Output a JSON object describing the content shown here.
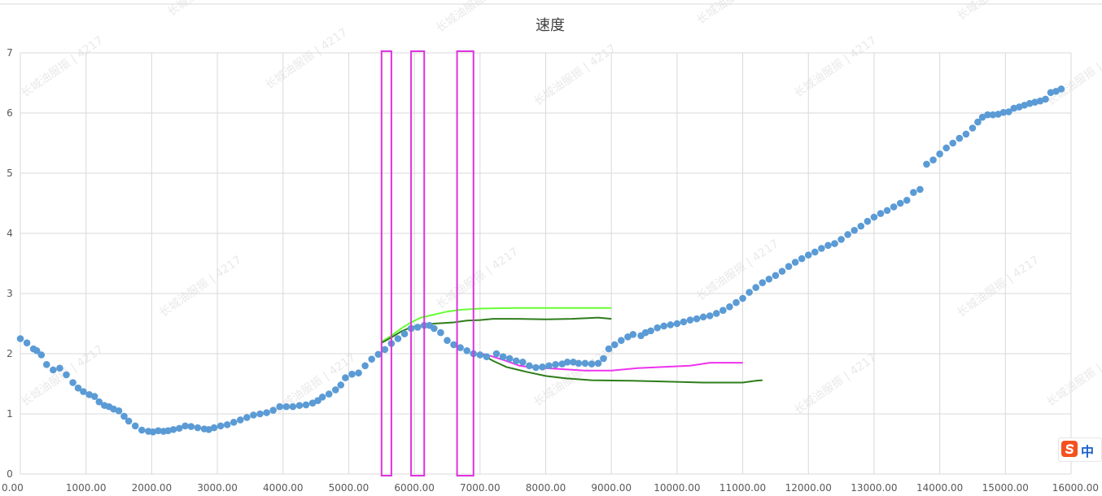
{
  "chart_data": {
    "type": "scatter",
    "title": "速度",
    "xlim": [
      0,
      16000
    ],
    "ylim": [
      0,
      7
    ],
    "x_ticks": [
      "0.00",
      "1000.00",
      "2000.00",
      "3000.00",
      "4000.00",
      "5000.00",
      "6000.00",
      "7000.00",
      "8000.00",
      "9000.00",
      "10000.00",
      "11000.00",
      "12000.00",
      "13000.00",
      "14000.00",
      "15000.00",
      "16000.00"
    ],
    "y_ticks": [
      "0",
      "1",
      "2",
      "3",
      "4",
      "5",
      "6",
      "7"
    ],
    "grid": true,
    "series": [
      {
        "kind": "scatter",
        "color": "#5b9bd5",
        "points": [
          [
            0,
            2.25
          ],
          [
            100,
            2.18
          ],
          [
            200,
            2.08
          ],
          [
            250,
            2.05
          ],
          [
            320,
            1.98
          ],
          [
            400,
            1.82
          ],
          [
            500,
            1.73
          ],
          [
            600,
            1.76
          ],
          [
            700,
            1.65
          ],
          [
            800,
            1.52
          ],
          [
            880,
            1.43
          ],
          [
            960,
            1.37
          ],
          [
            1050,
            1.32
          ],
          [
            1130,
            1.29
          ],
          [
            1200,
            1.2
          ],
          [
            1280,
            1.14
          ],
          [
            1350,
            1.12
          ],
          [
            1420,
            1.08
          ],
          [
            1500,
            1.05
          ],
          [
            1580,
            0.96
          ],
          [
            1650,
            0.88
          ],
          [
            1750,
            0.8
          ],
          [
            1850,
            0.73
          ],
          [
            1950,
            0.71
          ],
          [
            2020,
            0.7
          ],
          [
            2100,
            0.72
          ],
          [
            2180,
            0.71
          ],
          [
            2250,
            0.72
          ],
          [
            2330,
            0.74
          ],
          [
            2420,
            0.76
          ],
          [
            2510,
            0.8
          ],
          [
            2600,
            0.79
          ],
          [
            2700,
            0.77
          ],
          [
            2800,
            0.75
          ],
          [
            2870,
            0.74
          ],
          [
            2950,
            0.77
          ],
          [
            3050,
            0.8
          ],
          [
            3150,
            0.82
          ],
          [
            3250,
            0.86
          ],
          [
            3350,
            0.9
          ],
          [
            3450,
            0.94
          ],
          [
            3550,
            0.98
          ],
          [
            3650,
            1
          ],
          [
            3750,
            1.02
          ],
          [
            3850,
            1.06
          ],
          [
            3950,
            1.12
          ],
          [
            4050,
            1.12
          ],
          [
            4150,
            1.12
          ],
          [
            4250,
            1.14
          ],
          [
            4350,
            1.15
          ],
          [
            4450,
            1.18
          ],
          [
            4530,
            1.22
          ],
          [
            4600,
            1.28
          ],
          [
            4700,
            1.33
          ],
          [
            4800,
            1.4
          ],
          [
            4880,
            1.48
          ],
          [
            4950,
            1.6
          ],
          [
            5050,
            1.66
          ],
          [
            5150,
            1.68
          ],
          [
            5250,
            1.8
          ],
          [
            5350,
            1.91
          ],
          [
            5450,
            1.99
          ],
          [
            5550,
            2.07
          ],
          [
            5650,
            2.17
          ],
          [
            5750,
            2.25
          ],
          [
            5850,
            2.33
          ],
          [
            5950,
            2.42
          ],
          [
            6050,
            2.44
          ],
          [
            6150,
            2.47
          ],
          [
            6230,
            2.47
          ],
          [
            6300,
            2.42
          ],
          [
            6400,
            2.35
          ],
          [
            6500,
            2.22
          ],
          [
            6600,
            2.15
          ],
          [
            6700,
            2.1
          ],
          [
            6800,
            2.05
          ],
          [
            6900,
            2
          ],
          [
            7000,
            1.98
          ],
          [
            7100,
            1.95
          ],
          [
            7250,
            2
          ],
          [
            7350,
            1.95
          ],
          [
            7450,
            1.92
          ],
          [
            7550,
            1.88
          ],
          [
            7650,
            1.86
          ],
          [
            7750,
            1.8
          ],
          [
            7850,
            1.77
          ],
          [
            7950,
            1.78
          ],
          [
            8050,
            1.8
          ],
          [
            8150,
            1.82
          ],
          [
            8250,
            1.83
          ],
          [
            8330,
            1.86
          ],
          [
            8420,
            1.86
          ],
          [
            8500,
            1.84
          ],
          [
            8600,
            1.84
          ],
          [
            8700,
            1.83
          ],
          [
            8800,
            1.84
          ],
          [
            8880,
            1.92
          ],
          [
            8960,
            2.08
          ],
          [
            9050,
            2.15
          ],
          [
            9150,
            2.22
          ],
          [
            9250,
            2.28
          ],
          [
            9330,
            2.32
          ],
          [
            9450,
            2.3
          ],
          [
            9520,
            2.35
          ],
          [
            9600,
            2.38
          ],
          [
            9700,
            2.43
          ],
          [
            9800,
            2.46
          ],
          [
            9900,
            2.48
          ],
          [
            10000,
            2.5
          ],
          [
            10100,
            2.53
          ],
          [
            10200,
            2.56
          ],
          [
            10300,
            2.58
          ],
          [
            10400,
            2.61
          ],
          [
            10500,
            2.63
          ],
          [
            10600,
            2.67
          ],
          [
            10700,
            2.72
          ],
          [
            10800,
            2.78
          ],
          [
            10900,
            2.85
          ],
          [
            11000,
            2.92
          ],
          [
            11100,
            3.02
          ],
          [
            11200,
            3.1
          ],
          [
            11300,
            3.18
          ],
          [
            11400,
            3.24
          ],
          [
            11500,
            3.3
          ],
          [
            11600,
            3.37
          ],
          [
            11700,
            3.45
          ],
          [
            11800,
            3.52
          ],
          [
            11900,
            3.58
          ],
          [
            12000,
            3.64
          ],
          [
            12100,
            3.69
          ],
          [
            12200,
            3.75
          ],
          [
            12300,
            3.8
          ],
          [
            12400,
            3.83
          ],
          [
            12500,
            3.9
          ],
          [
            12600,
            3.98
          ],
          [
            12700,
            4.05
          ],
          [
            12800,
            4.12
          ],
          [
            12900,
            4.2
          ],
          [
            13000,
            4.27
          ],
          [
            13100,
            4.33
          ],
          [
            13200,
            4.38
          ],
          [
            13300,
            4.44
          ],
          [
            13400,
            4.5
          ],
          [
            13500,
            4.55
          ],
          [
            13600,
            4.68
          ],
          [
            13700,
            4.73
          ],
          [
            13800,
            5.15
          ],
          [
            13900,
            5.22
          ],
          [
            14000,
            5.32
          ],
          [
            14100,
            5.42
          ],
          [
            14200,
            5.5
          ],
          [
            14300,
            5.58
          ],
          [
            14400,
            5.65
          ],
          [
            14500,
            5.75
          ],
          [
            14580,
            5.85
          ],
          [
            14650,
            5.93
          ],
          [
            14730,
            5.97
          ],
          [
            14810,
            5.97
          ],
          [
            14890,
            5.98
          ],
          [
            14970,
            6.01
          ],
          [
            15050,
            6.02
          ],
          [
            15130,
            6.08
          ],
          [
            15210,
            6.1
          ],
          [
            15290,
            6.13
          ],
          [
            15370,
            6.16
          ],
          [
            15450,
            6.18
          ],
          [
            15530,
            6.2
          ],
          [
            15610,
            6.23
          ],
          [
            15690,
            6.34
          ],
          [
            15770,
            6.36
          ],
          [
            15850,
            6.4
          ]
        ]
      },
      {
        "kind": "line",
        "color": "#66ff33",
        "points": [
          [
            5500,
            2.2
          ],
          [
            5650,
            2.3
          ],
          [
            5800,
            2.42
          ],
          [
            5950,
            2.52
          ],
          [
            6100,
            2.6
          ],
          [
            6300,
            2.65
          ],
          [
            6500,
            2.7
          ],
          [
            6700,
            2.73
          ],
          [
            7000,
            2.75
          ],
          [
            7500,
            2.76
          ],
          [
            8000,
            2.76
          ],
          [
            8500,
            2.76
          ],
          [
            9000,
            2.76
          ]
        ]
      },
      {
        "kind": "line",
        "color": "#2e7d1a",
        "points": [
          [
            5500,
            2.18
          ],
          [
            5650,
            2.27
          ],
          [
            5800,
            2.37
          ],
          [
            5950,
            2.44
          ],
          [
            6100,
            2.47
          ],
          [
            6300,
            2.5
          ],
          [
            6600,
            2.52
          ],
          [
            6800,
            2.55
          ],
          [
            7000,
            2.56
          ],
          [
            7200,
            2.58
          ],
          [
            7500,
            2.58
          ],
          [
            8000,
            2.57
          ],
          [
            8400,
            2.58
          ],
          [
            8800,
            2.6
          ],
          [
            9000,
            2.58
          ]
        ]
      },
      {
        "kind": "line",
        "color": "#ee33ee",
        "points": [
          [
            7000,
            2.01
          ],
          [
            7200,
            1.95
          ],
          [
            7400,
            1.88
          ],
          [
            7600,
            1.8
          ],
          [
            7800,
            1.77
          ],
          [
            8000,
            1.76
          ],
          [
            8300,
            1.74
          ],
          [
            8600,
            1.72
          ],
          [
            9000,
            1.72
          ],
          [
            9400,
            1.76
          ],
          [
            9800,
            1.78
          ],
          [
            10200,
            1.8
          ],
          [
            10500,
            1.85
          ],
          [
            11000,
            1.85
          ]
        ]
      },
      {
        "kind": "line",
        "color": "#2e7d1a",
        "points": [
          [
            7000,
            2
          ],
          [
            7200,
            1.88
          ],
          [
            7400,
            1.78
          ],
          [
            7700,
            1.7
          ],
          [
            8000,
            1.63
          ],
          [
            8300,
            1.59
          ],
          [
            8700,
            1.56
          ],
          [
            9300,
            1.55
          ],
          [
            9700,
            1.54
          ],
          [
            10400,
            1.52
          ],
          [
            11000,
            1.52
          ],
          [
            11200,
            1.55
          ],
          [
            11300,
            1.56
          ]
        ]
      }
    ],
    "highlight_boxes": [
      {
        "color": "#dd33dd",
        "x0": 5500,
        "x1": 5650
      },
      {
        "color": "#dd33dd",
        "x0": 5950,
        "x1": 6150
      },
      {
        "color": "#dd33dd",
        "x0": 6650,
        "x1": 6900
      }
    ]
  },
  "watermark": "长城油服振 | 4217",
  "ime_badge": {
    "text": "中",
    "logo_color": "#f4511e"
  }
}
